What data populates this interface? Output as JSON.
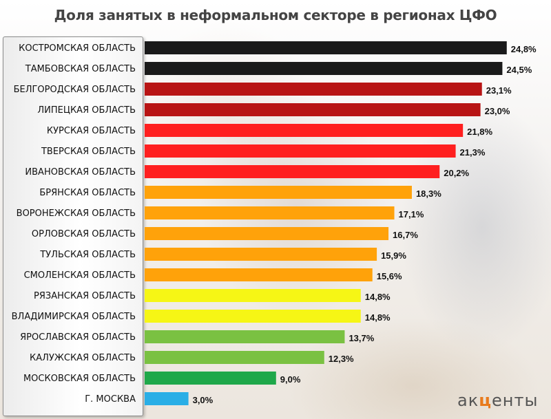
{
  "chart_data": {
    "type": "bar",
    "orientation": "horizontal",
    "title": "Доля занятых в неформальном секторе в регионах ЦФО",
    "categories": [
      "КОСТРОМСКАЯ ОБЛАСТЬ",
      "ТАМБОВСКАЯ ОБЛАСТЬ",
      "БЕЛГОРОДСКАЯ ОБЛАСТЬ",
      "ЛИПЕЦКАЯ ОБЛАСТЬ",
      "КУРСКАЯ ОБЛАСТЬ",
      "ТВЕРСКАЯ ОБЛАСТЬ",
      "ИВАНОВСКАЯ ОБЛАСТЬ",
      "БРЯНСКАЯ ОБЛАСТЬ",
      "ВОРОНЕЖСКАЯ ОБЛАСТЬ",
      "ОРЛОВСКАЯ ОБЛАСТЬ",
      "ТУЛЬСКАЯ ОБЛАСТЬ",
      "СМОЛЕНСКАЯ ОБЛАСТЬ",
      "РЯЗАНСКАЯ ОБЛАСТЬ",
      "ВЛАДИМИРСКАЯ ОБЛАСТЬ",
      "ЯРОСЛАВСКАЯ ОБЛАСТЬ",
      "КАЛУЖСКАЯ ОБЛАСТЬ",
      "МОСКОВСКАЯ ОБЛАСТЬ",
      "Г. МОСКВА"
    ],
    "values": [
      24.8,
      24.5,
      23.1,
      23.0,
      21.8,
      21.3,
      20.2,
      18.3,
      17.1,
      16.7,
      15.9,
      15.6,
      14.8,
      14.8,
      13.7,
      12.3,
      9.0,
      3.0
    ],
    "value_labels": [
      "24,8%",
      "24,5%",
      "23,1%",
      "23,0%",
      "21,8%",
      "21,3%",
      "20,2%",
      "18,3%",
      "17,1%",
      "16,7%",
      "15,9%",
      "15,6%",
      "14,8%",
      "14,8%",
      "13,7%",
      "12,3%",
      "9,0%",
      "3,0%"
    ],
    "colors": [
      "#1a1a1a",
      "#1a1a1a",
      "#b81414",
      "#b81414",
      "#ff1f1f",
      "#ff1f1f",
      "#ff1f1f",
      "#ffa20a",
      "#ffa20a",
      "#ffa20a",
      "#ffa20a",
      "#ffa20a",
      "#f6f615",
      "#f6f615",
      "#7ac142",
      "#7ac142",
      "#1fa84a",
      "#29aee6"
    ],
    "xlim": [
      0,
      25
    ],
    "xlabel": "",
    "ylabel": "",
    "grid": false,
    "legend": "none"
  },
  "logo": {
    "text_before": "ак",
    "text_accent": "ц",
    "text_after": "енты",
    "accent_color": "#e87a1c"
  }
}
